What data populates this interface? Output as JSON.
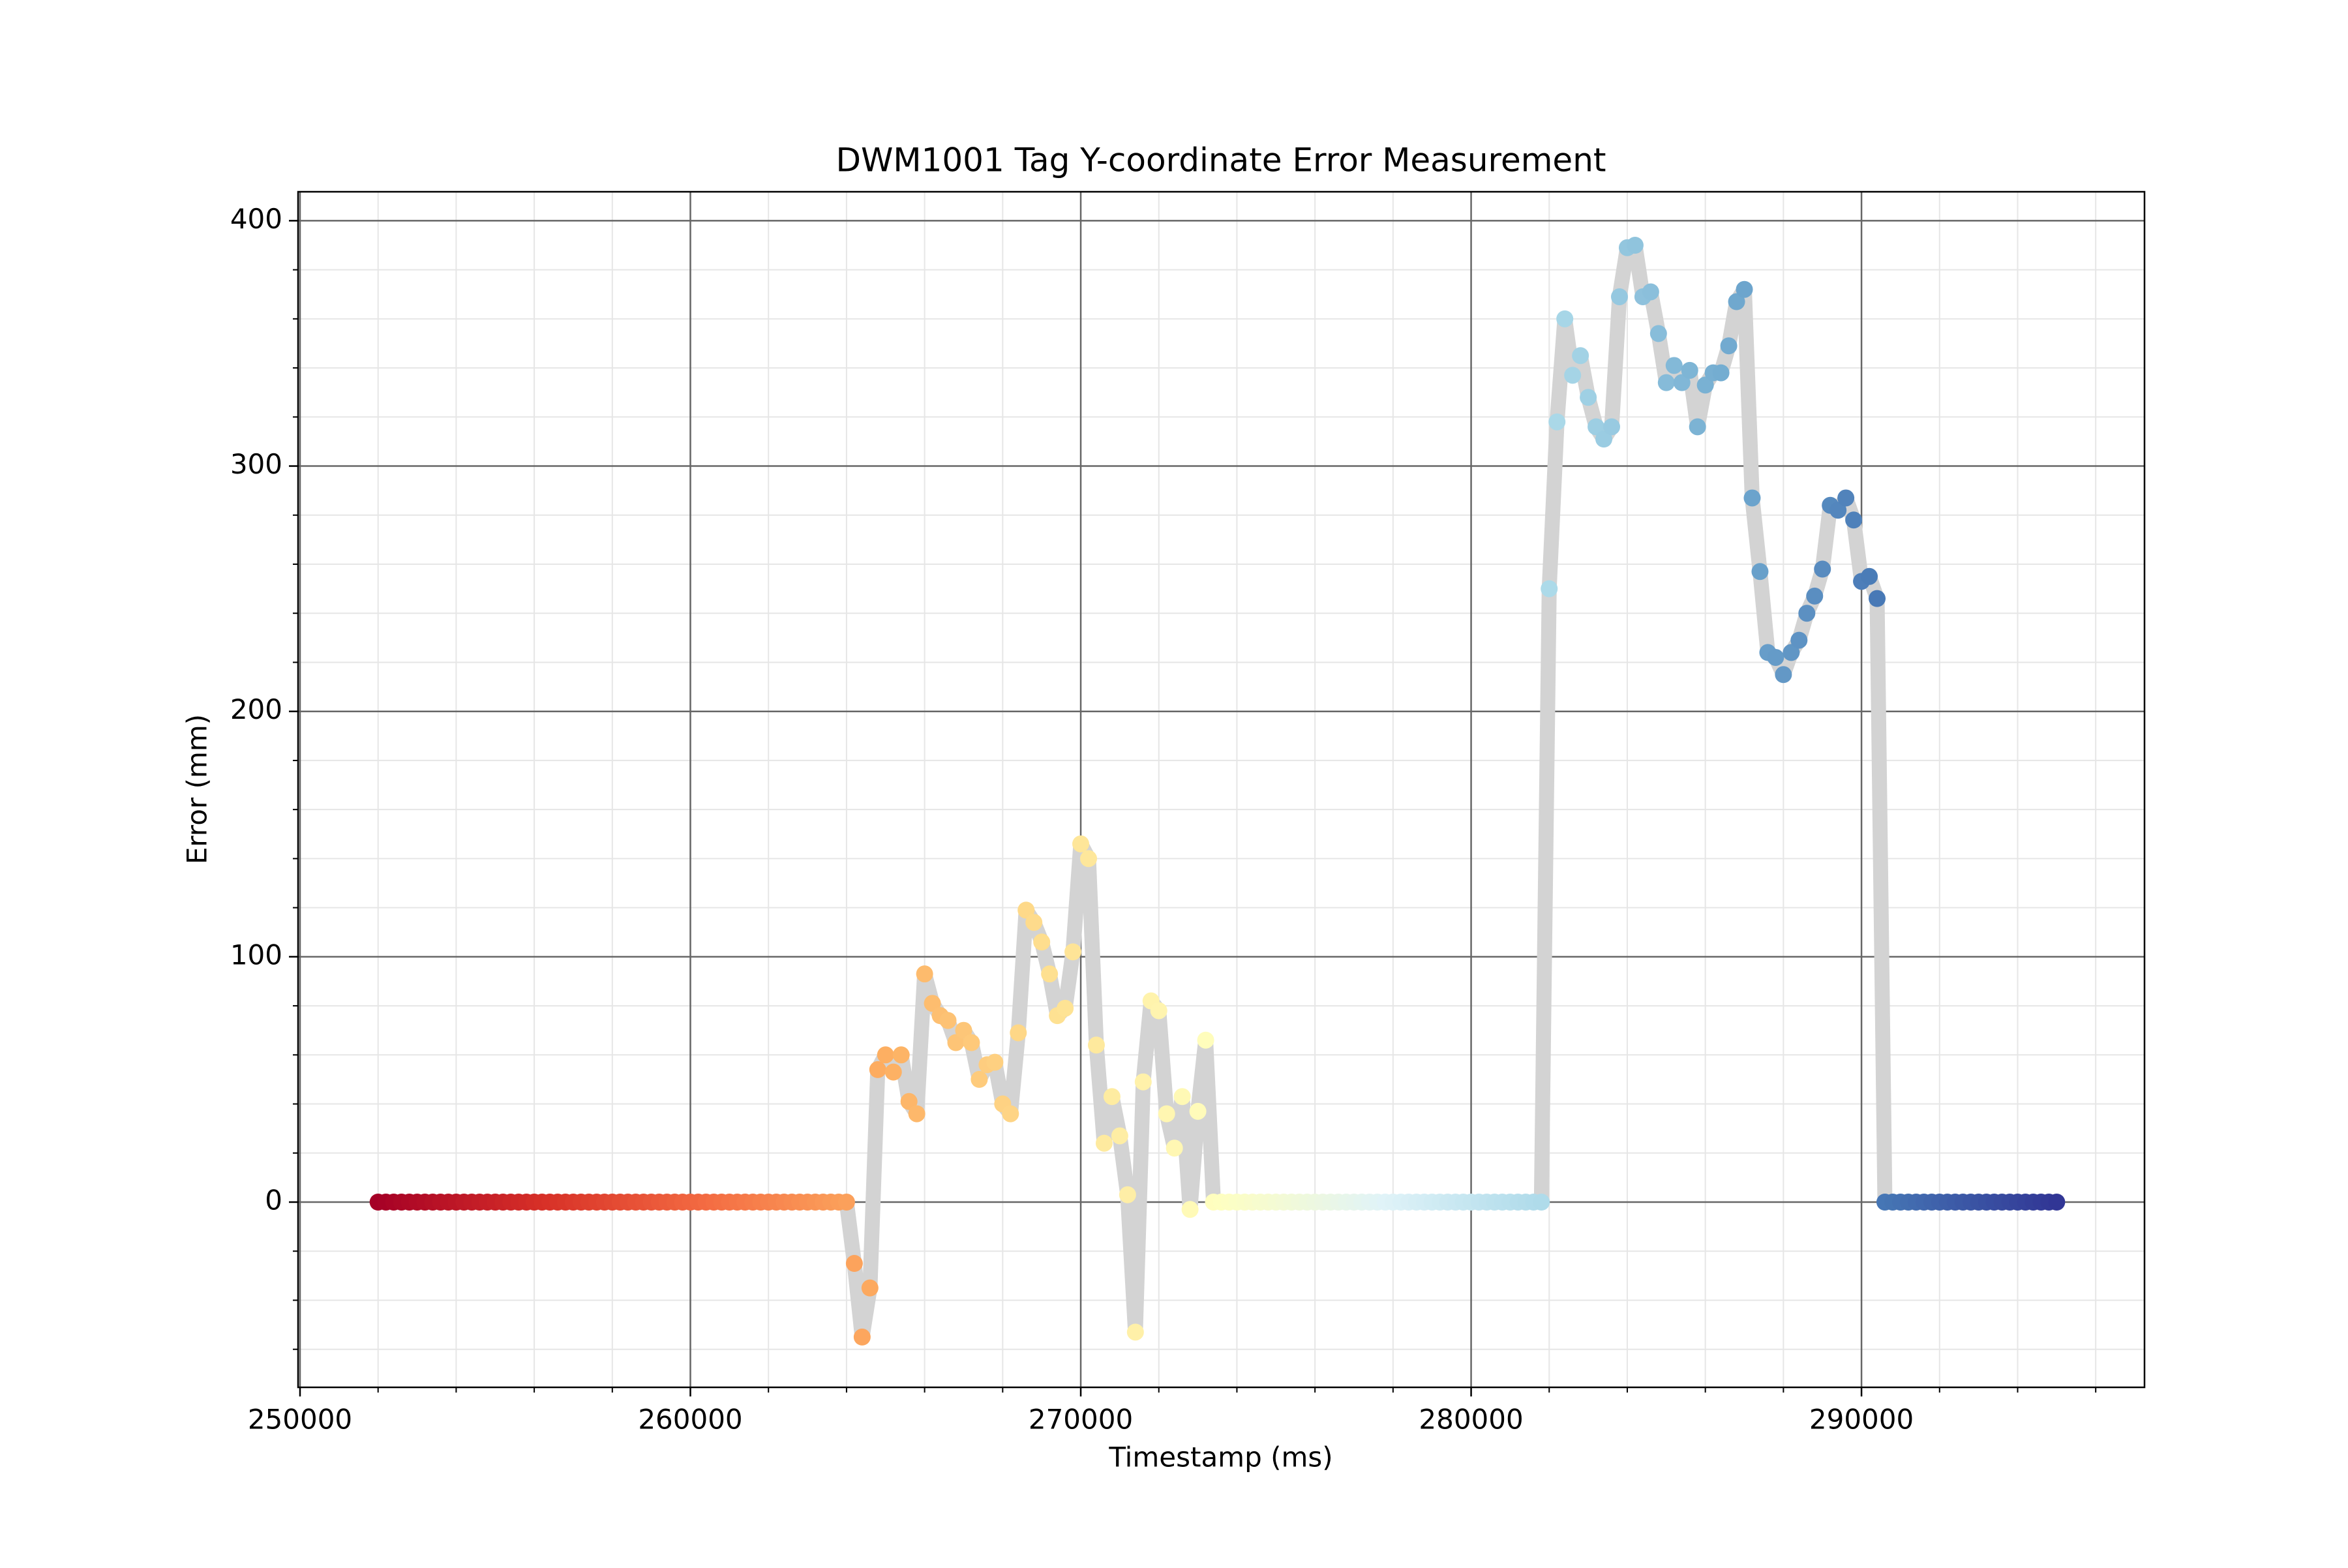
{
  "chart_data": {
    "type": "scatter",
    "title": "DWM1001 Tag Y-coordinate Error Measurement",
    "xlabel": "Timestamp (ms)",
    "ylabel": "Error (mm)",
    "xlim": [
      249950,
      297250
    ],
    "ylim": [
      -75.5,
      411.8
    ],
    "xticks": [
      250000,
      260000,
      270000,
      280000,
      290000
    ],
    "yticks": [
      0,
      100,
      200,
      300,
      400
    ],
    "xminorticks": [
      252000,
      254000,
      256000,
      258000,
      262000,
      264000,
      266000,
      268000,
      272000,
      274000,
      276000,
      278000,
      282000,
      284000,
      286000,
      288000,
      292000,
      294000,
      296000
    ],
    "yminorticks": [
      -60,
      -40,
      -20,
      20,
      40,
      60,
      80,
      120,
      140,
      160,
      180,
      220,
      240,
      260,
      280,
      320,
      340,
      360,
      380
    ],
    "grid": true,
    "line_color": "#d3d3d3",
    "cmap": "RdYlBu",
    "x": [
      252000,
      252200,
      252400,
      252600,
      252800,
      253000,
      253200,
      253400,
      253600,
      253800,
      254000,
      254200,
      254400,
      254600,
      254800,
      255000,
      255200,
      255400,
      255600,
      255800,
      256000,
      256200,
      256400,
      256600,
      256800,
      257000,
      257200,
      257400,
      257600,
      257800,
      258000,
      258200,
      258400,
      258600,
      258800,
      259000,
      259200,
      259400,
      259600,
      259800,
      260000,
      260200,
      260400,
      260600,
      260800,
      261000,
      261200,
      261400,
      261600,
      261800,
      262000,
      262200,
      262400,
      262600,
      262800,
      263000,
      263200,
      263400,
      263600,
      263800,
      264000,
      264200,
      264400,
      264600,
      264800,
      265000,
      265200,
      265400,
      265600,
      265800,
      266000,
      266200,
      266400,
      266600,
      266800,
      267000,
      267200,
      267400,
      267600,
      267800,
      268000,
      268200,
      268400,
      268600,
      268800,
      269000,
      269200,
      269400,
      269600,
      269800,
      270000,
      270200,
      270400,
      270600,
      270800,
      271000,
      271200,
      271400,
      271600,
      271800,
      272000,
      272200,
      272400,
      272600,
      272800,
      273000,
      273200,
      273400,
      273600,
      273800,
      274000,
      274200,
      274400,
      274600,
      274800,
      275000,
      275200,
      275400,
      275600,
      275800,
      276000,
      276200,
      276400,
      276600,
      276800,
      277000,
      277200,
      277400,
      277600,
      277800,
      278000,
      278200,
      278400,
      278600,
      278800,
      279000,
      279200,
      279400,
      279600,
      279800,
      280000,
      280200,
      280400,
      280600,
      280800,
      281000,
      281200,
      281400,
      281600,
      281800,
      282000,
      282200,
      282400,
      282600,
      282800,
      283000,
      283200,
      283400,
      283600,
      283800,
      284000,
      284200,
      284400,
      284600,
      284800,
      285000,
      285200,
      285400,
      285600,
      285800,
      286000,
      286200,
      286400,
      286600,
      286800,
      287000,
      287200,
      287400,
      287600,
      287800,
      288000,
      288200,
      288400,
      288600,
      288800,
      289000,
      289200,
      289400,
      289600,
      289800,
      290000,
      290200,
      290400,
      290600,
      290800,
      291000,
      291200,
      291400,
      291600,
      291800,
      292000,
      292200,
      292400,
      292600,
      292800,
      293000,
      293200,
      293400,
      293600,
      293800,
      294000,
      294200,
      294400,
      294600,
      294800,
      295000
    ],
    "values": [
      0,
      0,
      0,
      0,
      0,
      0,
      0,
      0,
      0,
      0,
      0,
      0,
      0,
      0,
      0,
      0,
      0,
      0,
      0,
      0,
      0,
      0,
      0,
      0,
      0,
      0,
      0,
      0,
      0,
      0,
      0,
      0,
      0,
      0,
      0,
      0,
      0,
      0,
      0,
      0,
      0,
      0,
      0,
      0,
      0,
      0,
      0,
      0,
      0,
      0,
      0,
      0,
      0,
      0,
      0,
      0,
      0,
      0,
      0,
      0,
      0,
      -25,
      -55,
      -35,
      54,
      60,
      53,
      60,
      41,
      36,
      93,
      81,
      76,
      74,
      65,
      70,
      65,
      50,
      56,
      57,
      40,
      36,
      69,
      119,
      114,
      106,
      93,
      76,
      79,
      102,
      146,
      140,
      64,
      24,
      43,
      27,
      3,
      -53,
      49,
      82,
      78,
      36,
      22,
      43,
      -3,
      37,
      66,
      0,
      0,
      0,
      0,
      0,
      0,
      0,
      0,
      0,
      0,
      0,
      0,
      0,
      0,
      0,
      0,
      0,
      0,
      0,
      0,
      0,
      0,
      0,
      0,
      0,
      0,
      0,
      0,
      0,
      0,
      0,
      0,
      0,
      0,
      0,
      0,
      0,
      0,
      0,
      0,
      0,
      0,
      0,
      250,
      318,
      360,
      337,
      345,
      328,
      316,
      311,
      316,
      369,
      389,
      390,
      369,
      371,
      354,
      334,
      341,
      334,
      339,
      316,
      333,
      338,
      338,
      349,
      367,
      372,
      287,
      257,
      224,
      222,
      215,
      224,
      229,
      240,
      247,
      258,
      284,
      282,
      287,
      278,
      253,
      255,
      246,
      0,
      0,
      0,
      0,
      0,
      0,
      0,
      0,
      0,
      0,
      0,
      0,
      0,
      0,
      0,
      0,
      0,
      0,
      0,
      0,
      0,
      0,
      0
    ]
  }
}
